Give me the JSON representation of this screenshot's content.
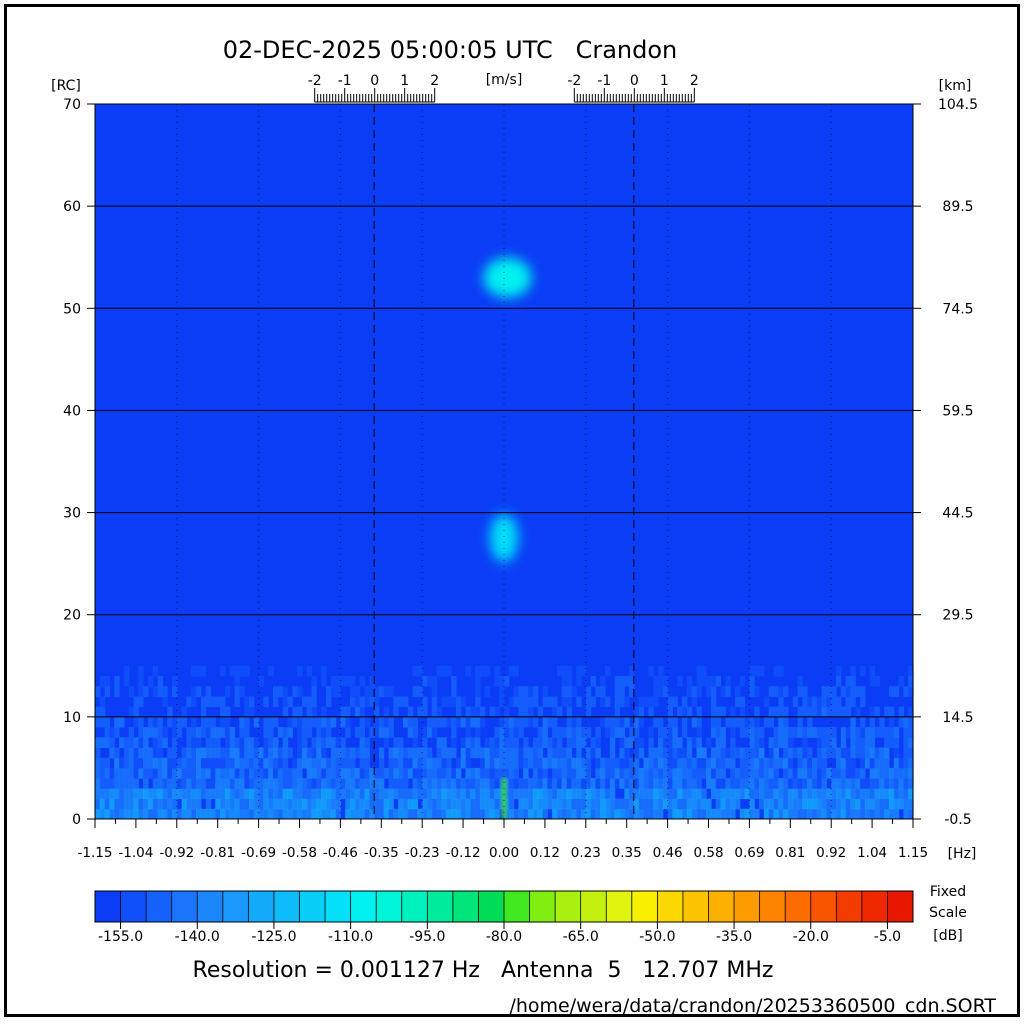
{
  "chart_data": {
    "type": "heatmap",
    "title": "02-DEC-2025 05:00:05 UTC   Crandon",
    "xlabel": "[Hz]",
    "ylabel_left": "[RC]",
    "ylabel_right": "[km]",
    "top_axis_label": "[m/s]",
    "x_range": [
      -1.15,
      1.15
    ],
    "y_range": [
      0,
      70
    ],
    "x_ticks": [
      "-1.15",
      "-1.04",
      "-0.92",
      "-0.81",
      "-0.69",
      "-0.58",
      "-0.46",
      "-0.35",
      "-0.23",
      "-0.12",
      "0.00",
      "0.12",
      "0.23",
      "0.35",
      "0.46",
      "0.58",
      "0.69",
      "0.81",
      "0.92",
      "1.04",
      "1.15"
    ],
    "x_tick_values": [
      -1.15,
      -1.035,
      -0.92,
      -0.805,
      -0.69,
      -0.575,
      -0.46,
      -0.345,
      -0.23,
      -0.115,
      0,
      0.115,
      0.23,
      0.345,
      0.46,
      0.575,
      0.69,
      0.805,
      0.92,
      1.035,
      1.15
    ],
    "y_ticks_left": [
      "0",
      "10",
      "20",
      "30",
      "40",
      "50",
      "60",
      "70"
    ],
    "y_tick_values": [
      0,
      10,
      20,
      30,
      40,
      50,
      60,
      70
    ],
    "y_ticks_right": [
      "-0.5",
      "14.5",
      "29.5",
      "44.5",
      "59.5",
      "74.5",
      "89.5",
      "104.5"
    ],
    "top_scales": [
      {
        "center_hz": -0.365,
        "labels": [
          "-2",
          "-1",
          "0",
          "1",
          "2"
        ],
        "values": [
          -2,
          -1,
          0,
          1,
          2
        ]
      },
      {
        "center_hz": 0.365,
        "labels": [
          "-2",
          "-1",
          "0",
          "1",
          "2"
        ],
        "values": [
          -2,
          -1,
          0,
          1,
          2
        ]
      }
    ],
    "bragg_lines_hz": [
      -0.365,
      0.365
    ],
    "grid": true,
    "background_db": -155,
    "features": [
      {
        "x_hz": 0.01,
        "range_cell": 53,
        "peak_db": -110
      },
      {
        "x_hz": 0.0,
        "range_cell": 27.5,
        "peak_db": -115
      },
      {
        "x_hz": 0.0,
        "range_cell": 2,
        "peak_db": -80
      }
    ],
    "colorbar": {
      "range": [
        -160,
        0
      ],
      "step": 5,
      "tick_labels": [
        "-155.0",
        "-140.0",
        "-125.0",
        "-110.0",
        "-95.0",
        "-80.0",
        "-65.0",
        "-50.0",
        "-35.0",
        "-20.0",
        "-5.0"
      ],
      "tick_values": [
        -155,
        -140,
        -125,
        -110,
        -95,
        -80,
        -65,
        -50,
        -35,
        -20,
        -5
      ],
      "label_line1": "Fixed",
      "label_line2": "Scale",
      "unit": "[dB]",
      "colors": [
        "#0a3df5",
        "#1050fa",
        "#1662fc",
        "#1a74fc",
        "#1c86fb",
        "#1a98fb",
        "#14aafa",
        "#0ebcf9",
        "#08cef8",
        "#04e0f8",
        "#00f0f0",
        "#00f5d8",
        "#00f2bc",
        "#00ec9c",
        "#00e47c",
        "#00dc58",
        "#40e820",
        "#80ee10",
        "#a8f010",
        "#c4f010",
        "#e0f410",
        "#f8f000",
        "#fcd800",
        "#fcc400",
        "#fcb000",
        "#fc9c00",
        "#fc8400",
        "#fc6c00",
        "#f85400",
        "#f43c00",
        "#f02800",
        "#e81800"
      ]
    }
  },
  "footer": {
    "resolution": "Resolution = 0.001127 Hz   Antenna  5   12.707 MHz",
    "path": "/home/wera/data/crandon/20253360500_cdn.SORT"
  }
}
